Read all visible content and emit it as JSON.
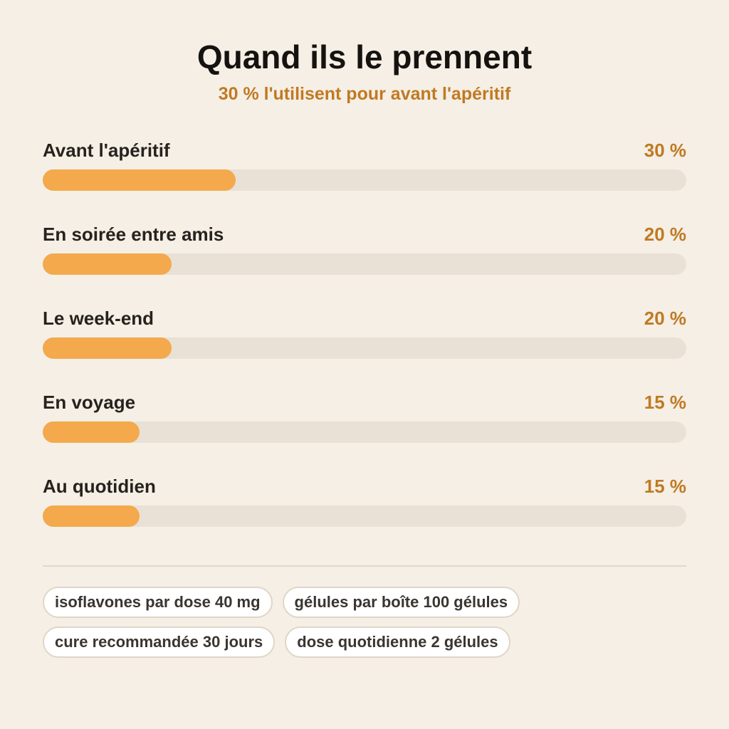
{
  "title": "Quand ils le prennent",
  "subtitle": "30 % l'utilisent pour avant l'apéritif",
  "colors": {
    "background": "#f5efe6",
    "bar_fill": "#f4a94d",
    "bar_track": "#e9e1d6",
    "accent": "#c07a22"
  },
  "chart_data": {
    "type": "bar",
    "orientation": "horizontal",
    "title": "Quand ils le prennent",
    "subtitle": "30 % l'utilisent pour avant l'apéritif",
    "categories": [
      "Avant l'apéritif",
      "En soirée entre amis",
      "Le week-end",
      "En voyage",
      "Au quotidien"
    ],
    "values": [
      30,
      20,
      20,
      15,
      15
    ],
    "value_labels": [
      "30 %",
      "20 %",
      "20 %",
      "15 %",
      "15 %"
    ],
    "xlim": [
      0,
      100
    ],
    "grid": false
  },
  "chips": [
    [
      "isoflavones par dose 40 mg",
      "gélules par boîte 100 gélules"
    ],
    [
      "cure recommandée 30 jours",
      "dose quotidienne 2 gélules"
    ]
  ]
}
